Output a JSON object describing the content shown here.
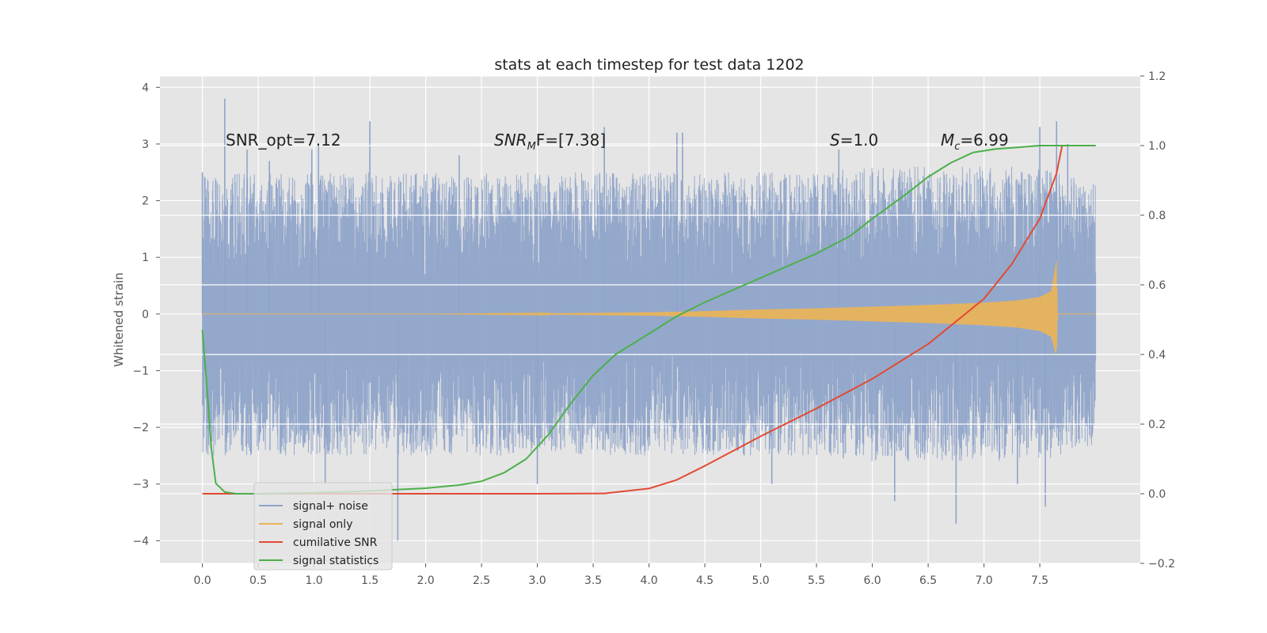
{
  "chart_data": {
    "type": "line",
    "title": "stats at each timestep for test data 1202",
    "ylabel": "Whitened strain",
    "xlabel": "",
    "xlim": [
      -0.38,
      8.4
    ],
    "ylim": [
      -4.4,
      4.2
    ],
    "y2lim": [
      -0.2,
      1.2
    ],
    "grid": true,
    "legend_position": "lower-left",
    "x_ticks": [
      "0.0",
      "0.5",
      "1.0",
      "1.5",
      "2.0",
      "2.5",
      "3.0",
      "3.5",
      "4.0",
      "4.5",
      "5.0",
      "5.5",
      "6.0",
      "6.5",
      "7.0",
      "7.5"
    ],
    "y_ticks": [
      "4",
      "3",
      "2",
      "1",
      "0",
      "−1",
      "−2",
      "−3",
      "−4"
    ],
    "y2_ticks": [
      "1.2",
      "1.0",
      "0.8",
      "0.6",
      "0.4",
      "0.2",
      "0.0",
      "−0.2"
    ],
    "annotations": {
      "snr_opt": "SNR_opt=7.12",
      "snr_mf_main": "SNR",
      "snr_mf_sub": "M",
      "snr_mf_rest": "F=[7.38]",
      "s_main": "S",
      "s_rest": "=1.0",
      "mc_main": "M",
      "mc_sub": "c",
      "mc_rest": "=6.99"
    },
    "legend": [
      {
        "label": "signal+ noise",
        "color": "#8fa4c9"
      },
      {
        "label": "signal only",
        "color": "#e8b35a"
      },
      {
        "label": "cumilative SNR",
        "color": "#e24a33"
      },
      {
        "label": "signal statistics",
        "color": "#4daf4a"
      }
    ],
    "series": [
      {
        "name": "signal+ noise",
        "axis": "left",
        "color": "#8fa4c9",
        "envelope": {
          "x": [
            0.0,
            0.5,
            1.0,
            1.5,
            2.0,
            2.5,
            3.0,
            3.5,
            4.0,
            4.5,
            5.0,
            5.5,
            6.0,
            6.5,
            7.0,
            7.5,
            8.0
          ],
          "upper": [
            2.5,
            2.5,
            2.5,
            2.5,
            2.5,
            2.5,
            2.5,
            2.5,
            2.5,
            2.5,
            2.5,
            2.5,
            2.6,
            2.6,
            2.6,
            2.6,
            2.3
          ],
          "lower": [
            -2.5,
            -2.5,
            -2.5,
            -2.5,
            -2.5,
            -2.5,
            -2.5,
            -2.5,
            -2.5,
            -2.5,
            -2.5,
            -2.5,
            -2.6,
            -2.6,
            -2.6,
            -2.6,
            -2.3
          ]
        },
        "spikes": [
          {
            "x": 0.0,
            "y": 2.5
          },
          {
            "x": 0.2,
            "y": 3.8
          },
          {
            "x": 0.4,
            "y": 2.9
          },
          {
            "x": 0.6,
            "y": 2.7
          },
          {
            "x": 0.98,
            "y": 2.9
          },
          {
            "x": 1.04,
            "y": 3.0
          },
          {
            "x": 1.5,
            "y": 3.4
          },
          {
            "x": 2.3,
            "y": 2.8
          },
          {
            "x": 3.6,
            "y": 3.3
          },
          {
            "x": 4.25,
            "y": 3.2
          },
          {
            "x": 4.3,
            "y": 3.2
          },
          {
            "x": 5.7,
            "y": 2.9
          },
          {
            "x": 7.5,
            "y": 3.3
          },
          {
            "x": 7.65,
            "y": 3.4
          },
          {
            "x": 7.75,
            "y": 3.0
          },
          {
            "x": 1.75,
            "y": -4.0
          },
          {
            "x": 1.1,
            "y": -3.0
          },
          {
            "x": 5.1,
            "y": -3.0
          },
          {
            "x": 6.2,
            "y": -3.3
          },
          {
            "x": 6.75,
            "y": -3.7
          },
          {
            "x": 7.55,
            "y": -3.4
          },
          {
            "x": 7.3,
            "y": -3.0
          },
          {
            "x": 3.0,
            "y": -3.0
          }
        ]
      },
      {
        "name": "signal only",
        "axis": "left",
        "color": "#e8b35a",
        "envelope": {
          "x": [
            0.0,
            1.0,
            2.0,
            3.0,
            4.0,
            4.5,
            5.0,
            5.5,
            6.0,
            6.5,
            7.0,
            7.3,
            7.5,
            7.6,
            7.65,
            7.66,
            8.0
          ],
          "upper": [
            0.0,
            0.0,
            0.0,
            0.01,
            0.03,
            0.05,
            0.08,
            0.1,
            0.13,
            0.16,
            0.2,
            0.24,
            0.3,
            0.4,
            0.95,
            0.0,
            0.0
          ],
          "lower": [
            0.0,
            0.0,
            0.0,
            -0.01,
            -0.03,
            -0.05,
            -0.08,
            -0.1,
            -0.13,
            -0.16,
            -0.2,
            -0.24,
            -0.3,
            -0.4,
            -0.75,
            0.0,
            0.0
          ]
        }
      },
      {
        "name": "cumilative SNR",
        "axis": "right",
        "color": "#e24a33",
        "x": [
          0.0,
          0.5,
          1.0,
          1.5,
          2.0,
          2.5,
          3.0,
          3.6,
          4.0,
          4.25,
          4.5,
          5.0,
          5.5,
          6.0,
          6.5,
          7.0,
          7.25,
          7.5,
          7.65,
          7.7,
          8.0
        ],
        "y": [
          0.0,
          0.0,
          0.0,
          0.0,
          0.0,
          0.0,
          0.0,
          0.001,
          0.015,
          0.04,
          0.08,
          0.165,
          0.245,
          0.33,
          0.43,
          0.56,
          0.66,
          0.79,
          0.92,
          1.0,
          1.0
        ]
      },
      {
        "name": "signal statistics",
        "axis": "right",
        "color": "#4daf4a",
        "x": [
          0.0,
          0.04,
          0.08,
          0.12,
          0.2,
          0.3,
          0.5,
          1.0,
          1.5,
          2.0,
          2.3,
          2.5,
          2.7,
          2.9,
          3.1,
          3.3,
          3.5,
          3.7,
          4.0,
          4.25,
          4.5,
          5.0,
          5.5,
          5.8,
          6.0,
          6.3,
          6.5,
          6.7,
          6.9,
          7.1,
          7.3,
          7.5,
          8.0
        ],
        "y": [
          0.47,
          0.31,
          0.13,
          0.03,
          0.005,
          0.0,
          0.0,
          0.003,
          0.008,
          0.016,
          0.025,
          0.036,
          0.06,
          0.1,
          0.17,
          0.26,
          0.34,
          0.4,
          0.46,
          0.51,
          0.55,
          0.62,
          0.69,
          0.74,
          0.79,
          0.86,
          0.91,
          0.95,
          0.98,
          0.99,
          0.995,
          1.0,
          1.0
        ]
      }
    ]
  }
}
